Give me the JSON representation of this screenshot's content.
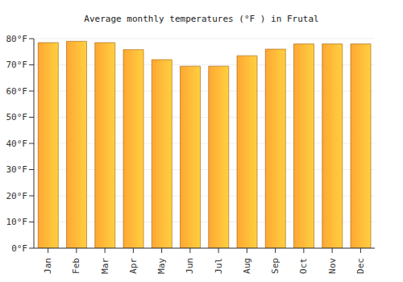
{
  "chart_data": {
    "type": "bar",
    "title": "Average monthly temperatures (°F ) in Frutal",
    "categories": [
      "Jan",
      "Feb",
      "Mar",
      "Apr",
      "May",
      "Jun",
      "Jul",
      "Aug",
      "Sep",
      "Oct",
      "Nov",
      "Dec"
    ],
    "values": [
      78.5,
      79,
      78.5,
      75.8,
      72,
      69.5,
      69.5,
      73.5,
      76,
      78,
      78,
      78
    ],
    "color": "#ffa733",
    "ylim": [
      0,
      80
    ],
    "yticks": [
      {
        "value": 0,
        "label": "0°F"
      },
      {
        "value": 10,
        "label": "10°F"
      },
      {
        "value": 20,
        "label": "20°F"
      },
      {
        "value": 30,
        "label": "30°F"
      },
      {
        "value": 40,
        "label": "40°F"
      },
      {
        "value": 50,
        "label": "50°F"
      },
      {
        "value": 60,
        "label": "60°F"
      },
      {
        "value": 70,
        "label": "70°F"
      },
      {
        "value": 80,
        "label": "80°F"
      }
    ],
    "grid": true
  }
}
